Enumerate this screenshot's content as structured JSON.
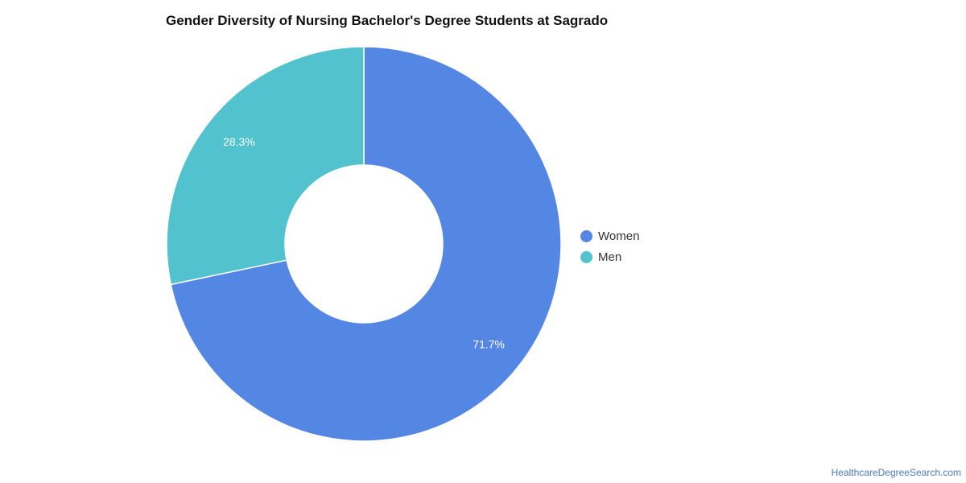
{
  "chart_data": {
    "type": "pie",
    "donut": true,
    "title": "Gender Diversity of Nursing Bachelor's Degree Students at Sagrado",
    "categories": [
      "Women",
      "Men"
    ],
    "values": [
      71.7,
      28.3
    ],
    "labels": [
      "71.7%",
      "28.3%"
    ],
    "colors": [
      "#5486e3",
      "#52c2cf"
    ],
    "legend_position": "right"
  },
  "legend": {
    "items": [
      {
        "label": "Women",
        "color": "#5486e3"
      },
      {
        "label": "Men",
        "color": "#52c2cf"
      }
    ]
  },
  "footer": {
    "source": "HealthcareDegreeSearch.com"
  }
}
